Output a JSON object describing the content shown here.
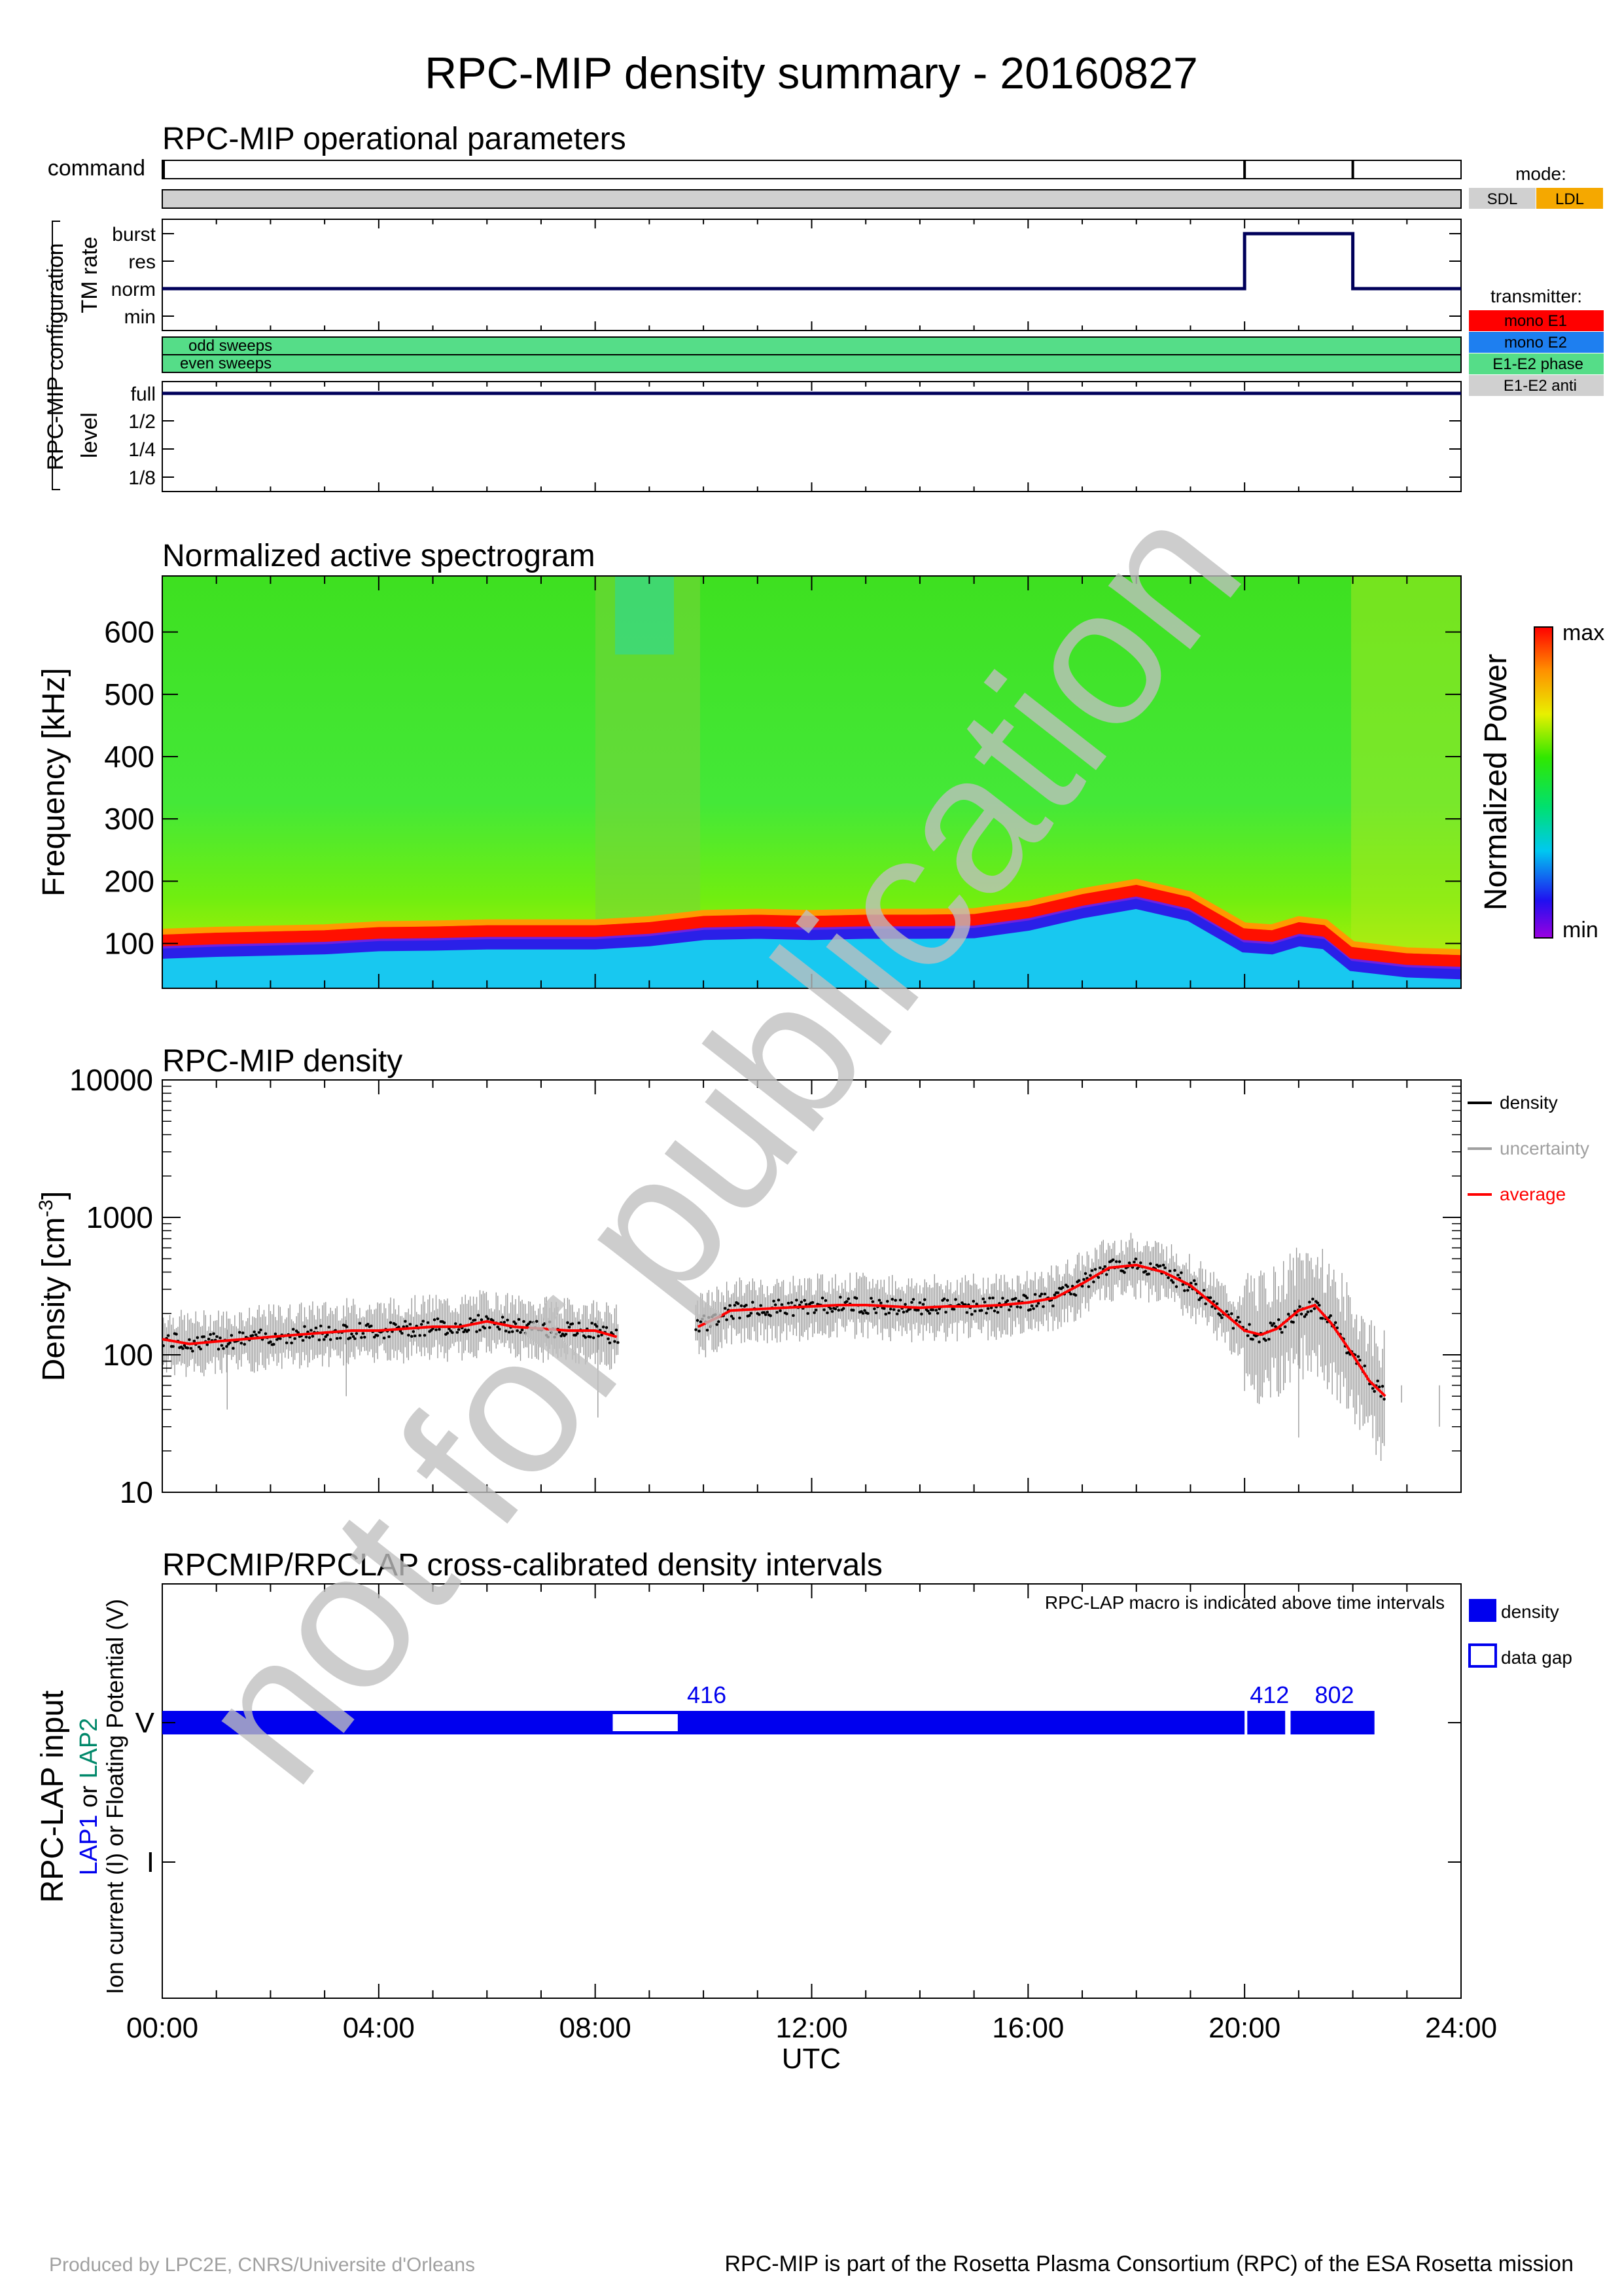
{
  "title": "RPC-MIP density summary - 20160827",
  "watermark": "not for publication",
  "footer": {
    "left": "Produced by LPC2E, CNRS/Universite d'Orleans",
    "right": "RPC-MIP is part of the Rosetta Plasma Consortium (RPC) of the ESA Rosetta mission"
  },
  "colors": {
    "mode_sdl": "#d0d0d0",
    "mode_ldl": "#f5a800",
    "mono_e1": "#ff0000",
    "mono_e2": "#1e7ff0",
    "e1e2_phase": "#55dd88",
    "e1e2_anti": "#d0d0d0",
    "density_black": "#000000",
    "uncertainty": "#a0a0a0",
    "average": "#ff0000",
    "lap_blue": "#0000ee",
    "lap2_green": "#00886a"
  },
  "time_axis": {
    "label": "UTC",
    "ticks": [
      "00:00",
      "04:00",
      "08:00",
      "12:00",
      "16:00",
      "20:00",
      "24:00"
    ],
    "range_hours": [
      0,
      24
    ]
  },
  "panel1": {
    "title": "RPC-MIP operational parameters",
    "command_label": "command",
    "command_marks_hours": [
      0,
      20.0,
      22.0
    ],
    "group_label": "RPC-MIP configuration",
    "tm_rate_label": "TM rate",
    "tm_levels": [
      "burst",
      "res",
      "norm",
      "min"
    ],
    "tm_rate_steps": [
      {
        "from": 0,
        "to": 20.0,
        "level": "norm"
      },
      {
        "from": 20.0,
        "to": 22.0,
        "level": "burst"
      },
      {
        "from": 22.0,
        "to": 24,
        "level": "norm"
      }
    ],
    "sweeps": [
      "odd sweeps",
      "even sweeps"
    ],
    "level_label": "level",
    "levels": [
      "full",
      "1/2",
      "1/4",
      "1/8"
    ],
    "level_value": "full",
    "legend": {
      "mode_title": "mode:",
      "modes": [
        "SDL",
        "LDL"
      ],
      "transmitter_title": "transmitter:",
      "transmitters": [
        "mono E1",
        "mono E2",
        "E1-E2 phase",
        "E1-E2 anti"
      ]
    }
  },
  "panel2": {
    "title": "Normalized active spectrogram",
    "ylabel": "Frequency [kHz]",
    "yticks": [
      100,
      200,
      300,
      400,
      500,
      600
    ],
    "ylim": [
      28,
      690
    ],
    "colorbar_label": "Normalized Power",
    "colorbar_max": "max",
    "colorbar_min": "min",
    "plasma_line_khz": [
      [
        0,
        105
      ],
      [
        1,
        108
      ],
      [
        2,
        110
      ],
      [
        3,
        112
      ],
      [
        4,
        117
      ],
      [
        5,
        118
      ],
      [
        6,
        120
      ],
      [
        7,
        120
      ],
      [
        8,
        120
      ],
      [
        9,
        125
      ],
      [
        10,
        135
      ],
      [
        11,
        137
      ],
      [
        12,
        135
      ],
      [
        13,
        137
      ],
      [
        14,
        137
      ],
      [
        15,
        138
      ],
      [
        16,
        150
      ],
      [
        17,
        170
      ],
      [
        18,
        185
      ],
      [
        19,
        165
      ],
      [
        20,
        115
      ],
      [
        20.5,
        112
      ],
      [
        21,
        125
      ],
      [
        21.5,
        120
      ],
      [
        22,
        85
      ],
      [
        23,
        75
      ],
      [
        24,
        72
      ]
    ]
  },
  "panel3": {
    "title": "RPC-MIP density",
    "ylabel": "Density [cm",
    "ylabel_sup": "-3",
    "ylabel_end": "]",
    "yticks": [
      "10",
      "100",
      "1000",
      "10000"
    ],
    "ylim_log": [
      10,
      10000
    ],
    "legend": [
      "density",
      "uncertainty",
      "average"
    ]
  },
  "panel4": {
    "title": "RPCMIP/RPCLAP cross-calibrated density intervals",
    "note": "RPC-LAP macro is indicated above time intervals",
    "ylabel_main": "RPC-LAP input",
    "ylabel_lap1": "LAP1",
    "ylabel_or": " or ",
    "ylabel_lap2": "LAP2",
    "ylabel_sub": "Ion current (I) or Floating Potential (V)",
    "yticks": [
      "V",
      "I"
    ],
    "legend": [
      "density",
      "data gap"
    ],
    "intervals": [
      {
        "from": 0,
        "to": 20.0,
        "type": "density"
      },
      {
        "from": 8.3,
        "to": 9.55,
        "type": "gap"
      },
      {
        "from": 20.05,
        "to": 20.75,
        "type": "density"
      },
      {
        "from": 20.85,
        "to": 22.4,
        "type": "density"
      }
    ],
    "macros": [
      {
        "hour": 10.0,
        "label": "416"
      },
      {
        "hour": 20.4,
        "label": "412"
      },
      {
        "hour": 21.6,
        "label": "802"
      }
    ]
  },
  "chart_data": [
    {
      "type": "line",
      "title": "RPC-MIP operational parameters",
      "xlabel": "UTC",
      "x": [
        0,
        20.0,
        20.0,
        22.0,
        22.0,
        24
      ],
      "series": [
        {
          "name": "TM rate",
          "values": [
            "norm",
            "norm",
            "burst",
            "burst",
            "norm",
            "norm"
          ]
        }
      ]
    },
    {
      "type": "heatmap",
      "title": "Normalized active spectrogram",
      "ylabel": "Frequency [kHz]",
      "xlabel": "UTC",
      "ylim": [
        28,
        690
      ],
      "colorbar": [
        "min",
        "max"
      ]
    },
    {
      "type": "line",
      "title": "RPC-MIP density",
      "ylabel": "Density [cm-3]",
      "xlabel": "UTC",
      "yscale": "log",
      "ylim": [
        10,
        10000
      ],
      "x": [
        0,
        0.5,
        1,
        1.5,
        2,
        2.5,
        3,
        3.5,
        4,
        4.5,
        5,
        5.5,
        6,
        6.5,
        7,
        7.5,
        8,
        8.4,
        9.9,
        10.3,
        10.5,
        11,
        11.5,
        12,
        12.5,
        13,
        13.5,
        14,
        14.5,
        15,
        15.5,
        16,
        16.5,
        17,
        17.5,
        18,
        18.5,
        19,
        19.5,
        20,
        20.3,
        20.6,
        21,
        21.3,
        21.6,
        22,
        22.3,
        22.6
      ],
      "series": [
        {
          "name": "average",
          "values": [
            130,
            120,
            125,
            130,
            135,
            140,
            145,
            150,
            150,
            155,
            160,
            160,
            175,
            160,
            155,
            150,
            150,
            135,
            160,
            190,
            210,
            215,
            220,
            225,
            230,
            230,
            225,
            220,
            225,
            225,
            230,
            240,
            260,
            330,
            430,
            450,
            400,
            320,
            220,
            150,
            140,
            155,
            210,
            230,
            170,
            100,
            65,
            50
          ]
        }
      ]
    },
    {
      "type": "bar",
      "title": "RPCMIP/RPCLAP cross-calibrated density intervals",
      "xlabel": "UTC",
      "categories": [
        "0-20.0 (416)",
        "20.05-20.75 (412)",
        "20.85-22.4 (802)"
      ],
      "values": [
        20.0,
        0.7,
        1.55
      ]
    }
  ]
}
